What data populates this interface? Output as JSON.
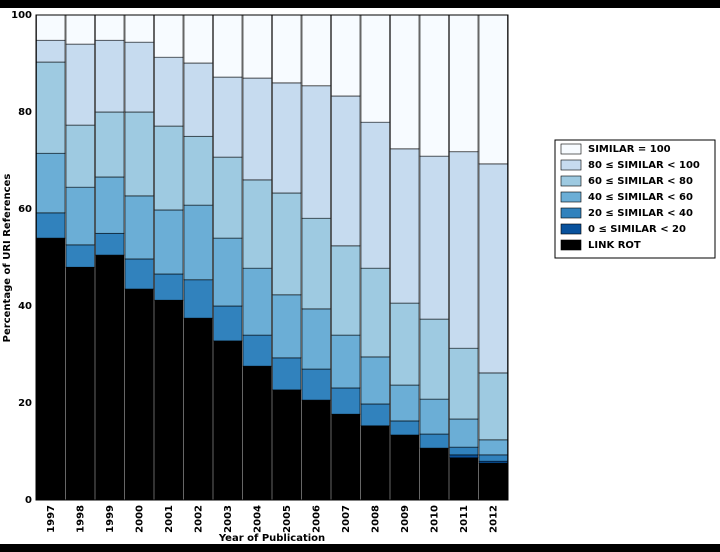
{
  "chart_data": {
    "type": "stacked-bar",
    "x_label": "Year of Publication",
    "y_label": "Percentage of URI References",
    "categories": [
      "1997",
      "1998",
      "1999",
      "2000",
      "2001",
      "2002",
      "2003",
      "2004",
      "2005",
      "2006",
      "2007",
      "2008",
      "2009",
      "2010",
      "2011",
      "2012"
    ],
    "ylim": [
      0,
      100
    ],
    "yticks": [
      0,
      20,
      40,
      60,
      80,
      100
    ],
    "series": [
      {
        "name": "LINK ROT",
        "color": "#000000",
        "values": [
          54,
          48,
          50.5,
          43.5,
          41.2,
          37.5,
          32.8,
          27.6,
          22.7,
          20.6,
          17.7,
          15.3,
          13.4,
          10.7,
          8.7,
          7.6
        ]
      },
      {
        "name": "0 ≤ SIMILAR < 20",
        "color": "#08519c",
        "values": [
          0,
          0,
          0,
          0,
          0,
          0,
          0,
          0,
          0,
          0,
          0,
          0,
          0,
          0,
          0.6,
          0.4
        ]
      },
      {
        "name": "20 ≤ SIMILAR < 40",
        "color": "#3182bd",
        "values": [
          5.2,
          4.6,
          4.5,
          6.2,
          5.4,
          7.9,
          7.2,
          6.4,
          6.6,
          6.4,
          5.4,
          4.5,
          2.9,
          2.9,
          1.6,
          1.3
        ]
      },
      {
        "name": "40 ≤ SIMILAR < 60",
        "color": "#6baed6",
        "values": [
          12.3,
          11.9,
          11.6,
          13,
          13.2,
          15.4,
          14,
          13.8,
          13,
          12.4,
          10.9,
          9.7,
          7.4,
          7.2,
          5.8,
          3.1
        ]
      },
      {
        "name": "60 ≤ SIMILAR < 80",
        "color": "#9ecae1",
        "values": [
          18.8,
          12.8,
          13.4,
          17.3,
          17.3,
          14.2,
          16.7,
          18.2,
          21,
          18.7,
          18.4,
          18.3,
          16.9,
          16.5,
          14.6,
          13.8
        ]
      },
      {
        "name": "80 ≤ SIMILAR < 100",
        "color": "#c6dbef",
        "values": [
          4.5,
          16.7,
          14.8,
          14.4,
          14.2,
          15.1,
          16.5,
          21,
          22.7,
          27.3,
          30.9,
          30.1,
          31.8,
          33.6,
          40.5,
          43.1
        ]
      },
      {
        "name": "SIMILAR = 100",
        "color": "#f7fbff",
        "values": [
          5.2,
          6,
          5.2,
          5.6,
          8.7,
          9.9,
          12.8,
          13,
          14,
          14.6,
          16.7,
          22.1,
          27.6,
          29.1,
          28.2,
          30.7
        ]
      }
    ]
  }
}
